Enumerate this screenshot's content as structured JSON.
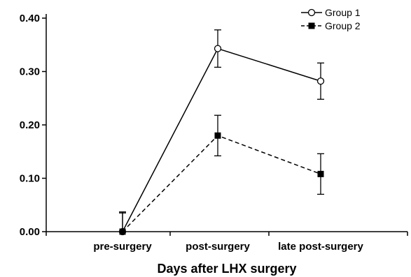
{
  "chart_data": {
    "type": "line",
    "title": "",
    "xlabel": "Days after LHX surgery",
    "ylabel": "",
    "categories": [
      "pre-surgery",
      "post-surgery",
      "late post-surgery"
    ],
    "ylim": [
      0,
      0.4
    ],
    "yticks": [
      "0.00",
      "0.10",
      "0.20",
      "0.30",
      "0.40"
    ],
    "grid": false,
    "legend_position": "top-right",
    "series": [
      {
        "name": "Group 1",
        "values": [
          0.0,
          0.343,
          0.282
        ],
        "errors": [
          0.035,
          0.035,
          0.034
        ],
        "line_style": "solid",
        "marker": "open-circle",
        "color": "#000000"
      },
      {
        "name": "Group 2",
        "values": [
          0.0,
          0.18,
          0.108
        ],
        "errors": [
          0.037,
          0.038,
          0.038
        ],
        "line_style": "dashed",
        "marker": "filled-square",
        "color": "#000000"
      }
    ]
  }
}
